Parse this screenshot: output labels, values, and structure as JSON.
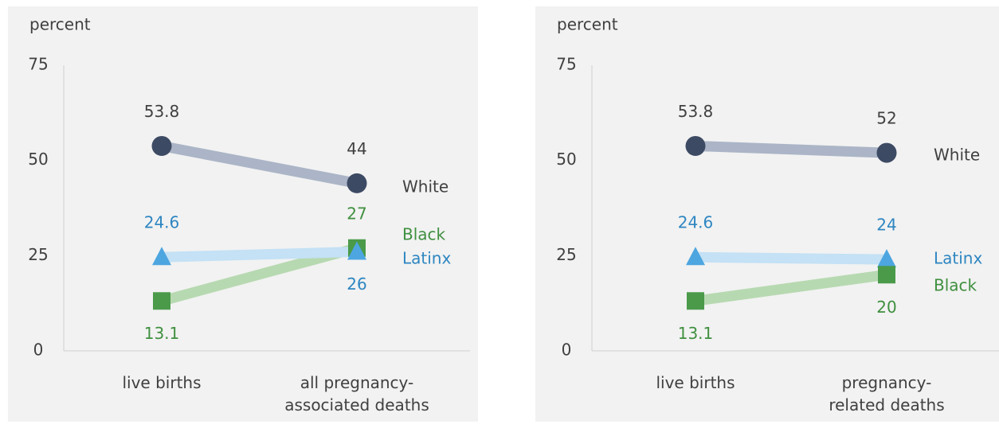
{
  "chart_data": [
    {
      "type": "line",
      "y_label": "percent",
      "categories": [
        "live births",
        "all pregnancy-associated deaths"
      ],
      "ylim": [
        0,
        75
      ],
      "yticks": [
        0,
        25,
        50,
        75
      ],
      "grid": false,
      "series": [
        {
          "name": "White",
          "color": "#3d4a63",
          "line_color": "#abb5c7",
          "label_color": "#404040",
          "values": [
            53.8,
            44
          ]
        },
        {
          "name": "Black",
          "color": "#4a9a4a",
          "line_color": "#b7d9b1",
          "label_color": "#3f8f3f",
          "values": [
            13.1,
            27
          ]
        },
        {
          "name": "Latinx",
          "color": "#4da6e0",
          "line_color": "#c4e1f5",
          "label_color": "#2e86c1",
          "values": [
            24.6,
            26
          ]
        }
      ]
    },
    {
      "type": "line",
      "y_label": "percent",
      "categories": [
        "live births",
        "pregnancy-related deaths"
      ],
      "ylim": [
        0,
        75
      ],
      "yticks": [
        0,
        25,
        50,
        75
      ],
      "grid": false,
      "series": [
        {
          "name": "White",
          "color": "#3d4a63",
          "line_color": "#abb5c7",
          "label_color": "#404040",
          "values": [
            53.8,
            52
          ]
        },
        {
          "name": "Latinx",
          "color": "#4da6e0",
          "line_color": "#c4e1f5",
          "label_color": "#2e86c1",
          "values": [
            24.6,
            24
          ]
        },
        {
          "name": "Black",
          "color": "#4a9a4a",
          "line_color": "#b7d9b1",
          "label_color": "#3f8f3f",
          "values": [
            13.1,
            20
          ]
        }
      ]
    }
  ]
}
